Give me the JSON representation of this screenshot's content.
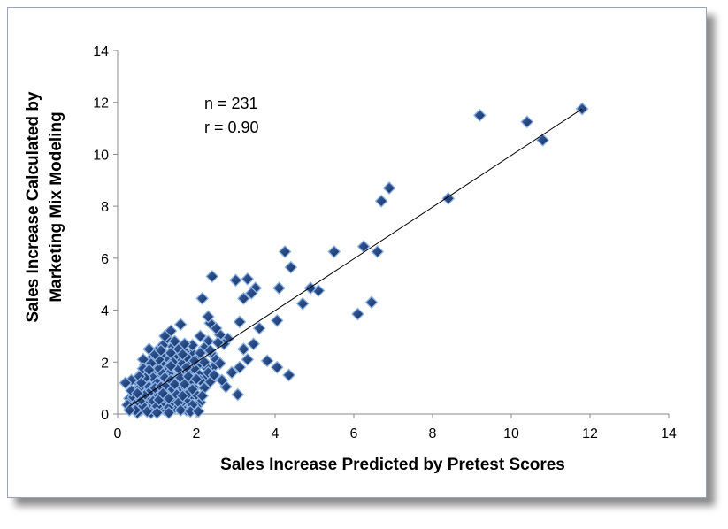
{
  "chart_data": {
    "type": "scatter",
    "title": "",
    "xlabel": "Sales Increase Predicted by Pretest Scores",
    "ylabel_lines": [
      "Sales Increase Calculated by",
      "Marketing Mix Modeling"
    ],
    "xlim": [
      0,
      14
    ],
    "ylim": [
      0,
      14
    ],
    "xticks": [
      0,
      2,
      4,
      6,
      8,
      10,
      12,
      14
    ],
    "yticks": [
      0,
      2,
      4,
      6,
      8,
      10,
      12,
      14
    ],
    "grid": false,
    "legend": "none",
    "annotations": [
      "n = 231",
      "r = 0.90"
    ],
    "marker_color": "#1f3f78",
    "marker_edge": "#8eb4e3",
    "trendline": {
      "x": [
        0.3,
        11.8
      ],
      "y": [
        0.3,
        11.75
      ]
    },
    "points": [
      [
        11.8,
        11.75
      ],
      [
        10.8,
        10.55
      ],
      [
        10.4,
        11.25
      ],
      [
        9.2,
        11.5
      ],
      [
        8.4,
        8.3
      ],
      [
        6.9,
        8.7
      ],
      [
        6.7,
        8.2
      ],
      [
        6.6,
        6.25
      ],
      [
        6.45,
        4.3
      ],
      [
        6.25,
        6.45
      ],
      [
        6.1,
        3.85
      ],
      [
        5.5,
        6.25
      ],
      [
        5.1,
        4.75
      ],
      [
        4.9,
        4.85
      ],
      [
        4.7,
        4.25
      ],
      [
        4.4,
        5.65
      ],
      [
        4.25,
        6.25
      ],
      [
        4.35,
        1.5
      ],
      [
        4.1,
        4.85
      ],
      [
        4.05,
        3.6
      ],
      [
        4.05,
        1.8
      ],
      [
        3.8,
        2.05
      ],
      [
        3.6,
        3.3
      ],
      [
        3.5,
        4.85
      ],
      [
        3.4,
        4.65
      ],
      [
        3.3,
        5.2
      ],
      [
        3.45,
        2.7
      ],
      [
        3.2,
        4.45
      ],
      [
        3.3,
        2.1
      ],
      [
        3.2,
        2.5
      ],
      [
        3.1,
        1.8
      ],
      [
        3.05,
        0.75
      ],
      [
        3.1,
        3.55
      ],
      [
        3.0,
        5.15
      ],
      [
        2.8,
        2.9
      ],
      [
        2.75,
        1.05
      ],
      [
        2.6,
        3.05
      ],
      [
        2.5,
        3.3
      ],
      [
        2.45,
        1.85
      ],
      [
        2.4,
        5.3
      ],
      [
        2.35,
        3.5
      ],
      [
        2.35,
        1.25
      ],
      [
        2.3,
        2.8
      ],
      [
        2.3,
        3.75
      ],
      [
        2.25,
        1.8
      ],
      [
        2.2,
        2.55
      ],
      [
        2.15,
        4.45
      ],
      [
        2.2,
        1.45
      ],
      [
        2.1,
        0.45
      ],
      [
        2.1,
        3.0
      ],
      [
        2.05,
        1.9
      ],
      [
        2.0,
        2.2
      ],
      [
        2.0,
        0.3
      ],
      [
        1.95,
        1.0
      ],
      [
        1.9,
        1.5
      ],
      [
        1.9,
        2.35
      ],
      [
        1.85,
        0.65
      ],
      [
        1.8,
        1.2
      ],
      [
        1.8,
        2.0
      ],
      [
        1.75,
        0.15
      ],
      [
        1.7,
        2.4
      ],
      [
        1.7,
        0.9
      ],
      [
        1.65,
        1.6
      ],
      [
        1.65,
        0.3
      ],
      [
        1.6,
        3.45
      ],
      [
        1.6,
        2.1
      ],
      [
        1.55,
        1.25
      ],
      [
        1.5,
        0.55
      ],
      [
        1.5,
        2.3
      ],
      [
        1.45,
        1.9
      ],
      [
        1.45,
        0.25
      ],
      [
        1.4,
        2.6
      ],
      [
        1.4,
        1.45
      ],
      [
        1.35,
        0.8
      ],
      [
        1.35,
        3.2
      ],
      [
        1.3,
        2.1
      ],
      [
        1.3,
        1.0
      ],
      [
        1.25,
        0.4
      ],
      [
        1.25,
        2.9
      ],
      [
        1.2,
        1.7
      ],
      [
        1.2,
        0.15
      ],
      [
        1.15,
        2.35
      ],
      [
        1.15,
        1.25
      ],
      [
        1.1,
        0.6
      ],
      [
        1.1,
        1.95
      ],
      [
        1.05,
        0.25
      ],
      [
        1.05,
        2.5
      ],
      [
        1.0,
        1.45
      ],
      [
        1.0,
        0.9
      ],
      [
        0.95,
        1.8
      ],
      [
        0.95,
        0.35
      ],
      [
        0.9,
        2.2
      ],
      [
        0.9,
        1.15
      ],
      [
        0.85,
        0.6
      ],
      [
        0.85,
        1.6
      ],
      [
        0.8,
        2.5
      ],
      [
        0.8,
        0.25
      ],
      [
        0.75,
        1.35
      ],
      [
        0.75,
        0.85
      ],
      [
        0.7,
        1.9
      ],
      [
        0.7,
        0.45
      ],
      [
        0.65,
        1.1
      ],
      [
        0.65,
        2.1
      ],
      [
        0.6,
        0.15
      ],
      [
        0.6,
        1.55
      ],
      [
        0.55,
        0.7
      ],
      [
        0.5,
        1.25
      ],
      [
        0.5,
        0.05
      ],
      [
        0.45,
        0.9
      ],
      [
        0.4,
        0.35
      ],
      [
        0.35,
        1.3
      ],
      [
        0.3,
        0.6
      ],
      [
        0.25,
        0.35
      ],
      [
        0.2,
        1.2
      ],
      [
        0.55,
        0.3
      ],
      [
        0.85,
        0.05
      ],
      [
        1.15,
        0.5
      ],
      [
        1.45,
        0.6
      ],
      [
        1.75,
        0.5
      ],
      [
        0.6,
        0.95
      ],
      [
        0.9,
        1.4
      ],
      [
        1.3,
        1.55
      ],
      [
        1.6,
        1.05
      ],
      [
        2.05,
        1.55
      ],
      [
        1.05,
        1.75
      ],
      [
        1.4,
        2.0
      ],
      [
        0.7,
        1.4
      ],
      [
        1.25,
        0.75
      ],
      [
        1.55,
        1.75
      ],
      [
        1.85,
        1.7
      ],
      [
        0.4,
        0.65
      ],
      [
        0.5,
        0.45
      ],
      [
        0.55,
        1.0
      ],
      [
        0.65,
        0.3
      ],
      [
        0.75,
        0.6
      ],
      [
        0.8,
        1.05
      ],
      [
        0.95,
        0.7
      ],
      [
        1.0,
        1.2
      ],
      [
        1.1,
        0.35
      ],
      [
        1.15,
        1.55
      ],
      [
        1.2,
        0.95
      ],
      [
        1.3,
        0.25
      ],
      [
        1.35,
        1.85
      ],
      [
        1.4,
        0.5
      ],
      [
        1.5,
        1.35
      ],
      [
        1.55,
        0.85
      ],
      [
        1.6,
        0.4
      ],
      [
        1.65,
        1.95
      ],
      [
        1.7,
        1.35
      ],
      [
        1.8,
        0.8
      ],
      [
        1.85,
        1.25
      ],
      [
        1.9,
        0.35
      ],
      [
        1.95,
        1.75
      ],
      [
        2.0,
        0.75
      ],
      [
        2.1,
        1.3
      ],
      [
        2.2,
        1.0
      ],
      [
        0.45,
        0.15
      ],
      [
        0.6,
        0.55
      ],
      [
        0.7,
        0.75
      ],
      [
        0.75,
        0.1
      ],
      [
        0.85,
        0.9
      ],
      [
        0.9,
        0.5
      ],
      [
        0.95,
        1.0
      ],
      [
        1.0,
        0.3
      ],
      [
        1.05,
        0.55
      ],
      [
        1.1,
        1.05
      ],
      [
        1.15,
        0.8
      ],
      [
        1.2,
        1.4
      ],
      [
        1.25,
        1.1
      ],
      [
        1.3,
        0.6
      ],
      [
        1.35,
        1.3
      ],
      [
        1.4,
        0.95
      ],
      [
        1.45,
        1.15
      ],
      [
        1.5,
        0.75
      ],
      [
        1.55,
        0.45
      ],
      [
        1.6,
        1.4
      ],
      [
        1.65,
        0.7
      ],
      [
        1.7,
        1.15
      ],
      [
        1.75,
        1.8
      ],
      [
        1.8,
        1.45
      ],
      [
        1.9,
        0.95
      ],
      [
        2.0,
        1.35
      ],
      [
        2.15,
        0.7
      ],
      [
        2.3,
        1.6
      ],
      [
        2.4,
        2.3
      ],
      [
        2.5,
        2.1
      ],
      [
        2.6,
        1.95
      ],
      [
        2.7,
        2.7
      ],
      [
        2.55,
        2.75
      ],
      [
        2.2,
        2.0
      ],
      [
        1.95,
        2.05
      ],
      [
        1.75,
        2.2
      ],
      [
        1.55,
        2.5
      ],
      [
        1.35,
        2.35
      ],
      [
        1.15,
        2.65
      ],
      [
        1.05,
        2.1
      ],
      [
        0.95,
        2.3
      ],
      [
        0.85,
        1.95
      ],
      [
        0.65,
        1.75
      ],
      [
        0.55,
        1.45
      ],
      [
        1.2,
        3.0
      ],
      [
        1.45,
        2.8
      ],
      [
        1.1,
        2.45
      ],
      [
        0.8,
        1.7
      ],
      [
        1.65,
        2.3
      ],
      [
        2.35,
        2.45
      ],
      [
        2.45,
        1.5
      ],
      [
        2.65,
        1.3
      ],
      [
        2.9,
        1.6
      ],
      [
        1.9,
        2.65
      ],
      [
        2.1,
        2.35
      ],
      [
        1.7,
        2.7
      ],
      [
        1.0,
        0.05
      ],
      [
        1.3,
        0.05
      ],
      [
        1.6,
        0.15
      ],
      [
        1.85,
        0.1
      ],
      [
        2.05,
        0.1
      ],
      [
        0.35,
        0.9
      ],
      [
        0.3,
        0.15
      ],
      [
        0.5,
        0.8
      ],
      [
        0.6,
        1.2
      ]
    ]
  }
}
